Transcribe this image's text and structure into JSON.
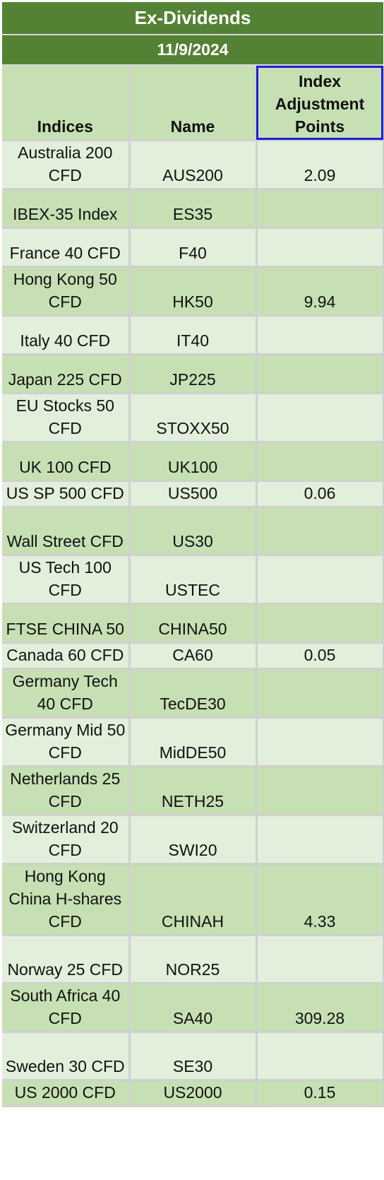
{
  "header": {
    "title": "Ex-Dividends",
    "date": "11/9/2024"
  },
  "columns": {
    "indices": "Indices",
    "name": "Name",
    "points": "Index Adjustment Points"
  },
  "rows": [
    {
      "index": "Australia 200 CFD",
      "name": "AUS200",
      "points": "2.09"
    },
    {
      "index": "IBEX-35 Index",
      "name": "ES35",
      "points": ""
    },
    {
      "index": "France 40 CFD",
      "name": "F40",
      "points": ""
    },
    {
      "index": "Hong Kong 50 CFD",
      "name": "HK50",
      "points": "9.94"
    },
    {
      "index": "Italy 40 CFD",
      "name": "IT40",
      "points": ""
    },
    {
      "index": "Japan 225 CFD",
      "name": "JP225",
      "points": ""
    },
    {
      "index": "EU Stocks 50 CFD",
      "name": "STOXX50",
      "points": ""
    },
    {
      "index": "UK 100 CFD",
      "name": "UK100",
      "points": ""
    },
    {
      "index": "US SP 500 CFD",
      "name": "US500",
      "points": "0.06"
    },
    {
      "index": "Wall Street CFD",
      "name": "US30",
      "points": ""
    },
    {
      "index": "US Tech 100 CFD",
      "name": "USTEC",
      "points": ""
    },
    {
      "index": "FTSE CHINA 50",
      "name": "CHINA50",
      "points": ""
    },
    {
      "index": "Canada 60 CFD",
      "name": "CA60",
      "points": "0.05"
    },
    {
      "index": "Germany Tech 40 CFD",
      "name": "TecDE30",
      "points": ""
    },
    {
      "index": "Germany Mid 50 CFD",
      "name": "MidDE50",
      "points": ""
    },
    {
      "index": "Netherlands 25 CFD",
      "name": "NETH25",
      "points": ""
    },
    {
      "index": "Switzerland 20 CFD",
      "name": "SWI20",
      "points": ""
    },
    {
      "index": "Hong Kong China H-shares CFD",
      "name": "CHINAH",
      "points": "4.33"
    },
    {
      "index": "Norway 25 CFD",
      "name": "NOR25",
      "points": ""
    },
    {
      "index": "South Africa 40 CFD",
      "name": "SA40",
      "points": "309.28"
    },
    {
      "index": "Sweden 30 CFD",
      "name": "SE30",
      "points": ""
    },
    {
      "index": "US 2000 CFD",
      "name": "US2000",
      "points": "0.15"
    }
  ],
  "colors": {
    "title_bg": "#548235",
    "header_bg": "#c6e0b4",
    "row_light": "#e2efda",
    "row_dark": "#c6e0b4",
    "selection": "#1f1fd6"
  }
}
